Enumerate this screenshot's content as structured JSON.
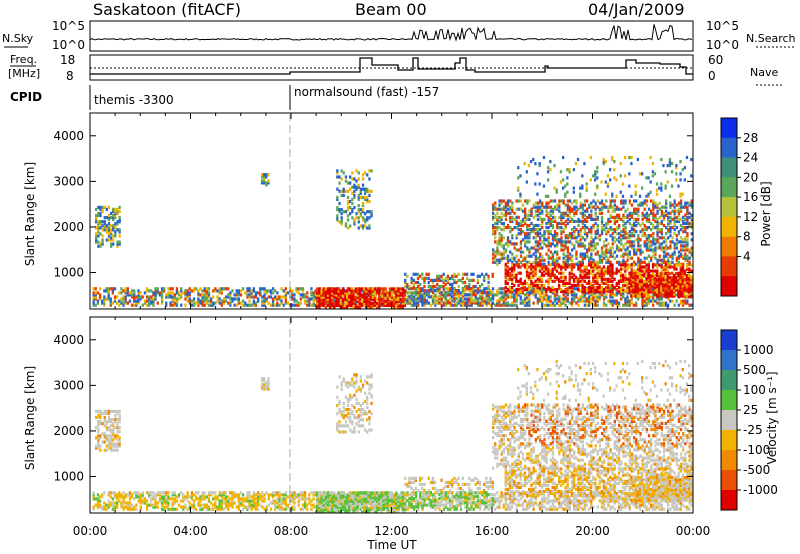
{
  "header": {
    "station": "Saskatoon (fitACF)",
    "beam": "Beam 00",
    "date": "04/Jan/2009"
  },
  "top_panel": {
    "left_label": "N.Sky",
    "left_ticks": [
      "10^5",
      "10^0"
    ],
    "right_ticks": [
      "10^5",
      "10^0"
    ],
    "right_label": "N.Search"
  },
  "freq_panel": {
    "left_label_line1": "Freq.",
    "left_label_line2": "[MHz]",
    "left_ticks": [
      "18",
      "8"
    ],
    "right_ticks": [
      "60",
      "0"
    ],
    "right_label": "Nave"
  },
  "cpid": {
    "label": "CPID",
    "segments": [
      "themis -3300",
      "normalsound (fast) -157"
    ]
  },
  "chart_data": [
    {
      "type": "heatmap",
      "name": "power",
      "ylabel": "Slant Range [km]",
      "yticks": [
        "4000",
        "3000",
        "2000",
        "1000"
      ],
      "colorbar_label": "Power [dB]",
      "colorbar_ticks": [
        "28",
        "24",
        "20",
        "16",
        "12",
        "8",
        "4"
      ],
      "colorbar_colors": [
        "#0b2fe8",
        "#2a63c9",
        "#3e8f7a",
        "#5aa65a",
        "#b7c23a",
        "#f0b400",
        "#f07a00",
        "#e63c00",
        "#e00000"
      ]
    },
    {
      "type": "heatmap",
      "name": "velocity",
      "ylabel": "Slant Range [km]",
      "yticks": [
        "4000",
        "3000",
        "2000",
        "1000"
      ],
      "colorbar_label": "Velocity [m s⁻¹]",
      "colorbar_ticks": [
        "1000",
        "500",
        "100",
        "25",
        "-25",
        "-100",
        "-500",
        "-1000"
      ],
      "colorbar_colors": [
        "#1a3fd0",
        "#2f74c8",
        "#3f9a70",
        "#56c13a",
        "#c8c8c0",
        "#f2b200",
        "#f08a00",
        "#ea5000",
        "#e00000"
      ]
    }
  ],
  "x_axis": {
    "ticks": [
      "00:00",
      "04:00",
      "08:00",
      "12:00",
      "16:00",
      "20:00",
      "00:00"
    ],
    "label": "Time UT"
  }
}
